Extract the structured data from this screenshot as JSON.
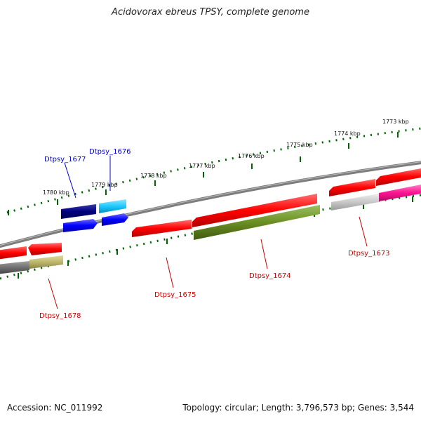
{
  "title": "Acidovorax ebreus TPSY, complete genome",
  "footer": {
    "accession": "Accession: NC_011992",
    "topology": "Topology: circular; Length: 3,796,573 bp; Genes: 3,544"
  },
  "ruler_labels": [
    "1773 kbp",
    "1774 kbp",
    "1775 kbp",
    "1776 kbp",
    "1777 kbp",
    "1778 kbp",
    "1779 kbp",
    "1780 kbp"
  ],
  "gene_labels": {
    "dtpsy_1673": "Dtpsy_1673",
    "dtpsy_1674": "Dtpsy_1674",
    "dtpsy_1675": "Dtpsy_1675",
    "dtpsy_1676": "Dtpsy_1676",
    "dtpsy_1677": "Dtpsy_1677",
    "dtpsy_1678": "Dtpsy_1678"
  },
  "colors": {
    "backbone": "#808080",
    "forward_gene": "#ff0000",
    "label_forward": "#cc0000",
    "label_reverse": "#0000cc",
    "navy": "#000080",
    "cyan": "#1ec8ff",
    "blue": "#0000ff",
    "olive": "#6b8e23",
    "khaki": "#bdb76b",
    "magenta": "#ff1493",
    "gray_light": "#c8c8c8",
    "gray_dark": "#6e6e6e",
    "tick": "#006400"
  }
}
